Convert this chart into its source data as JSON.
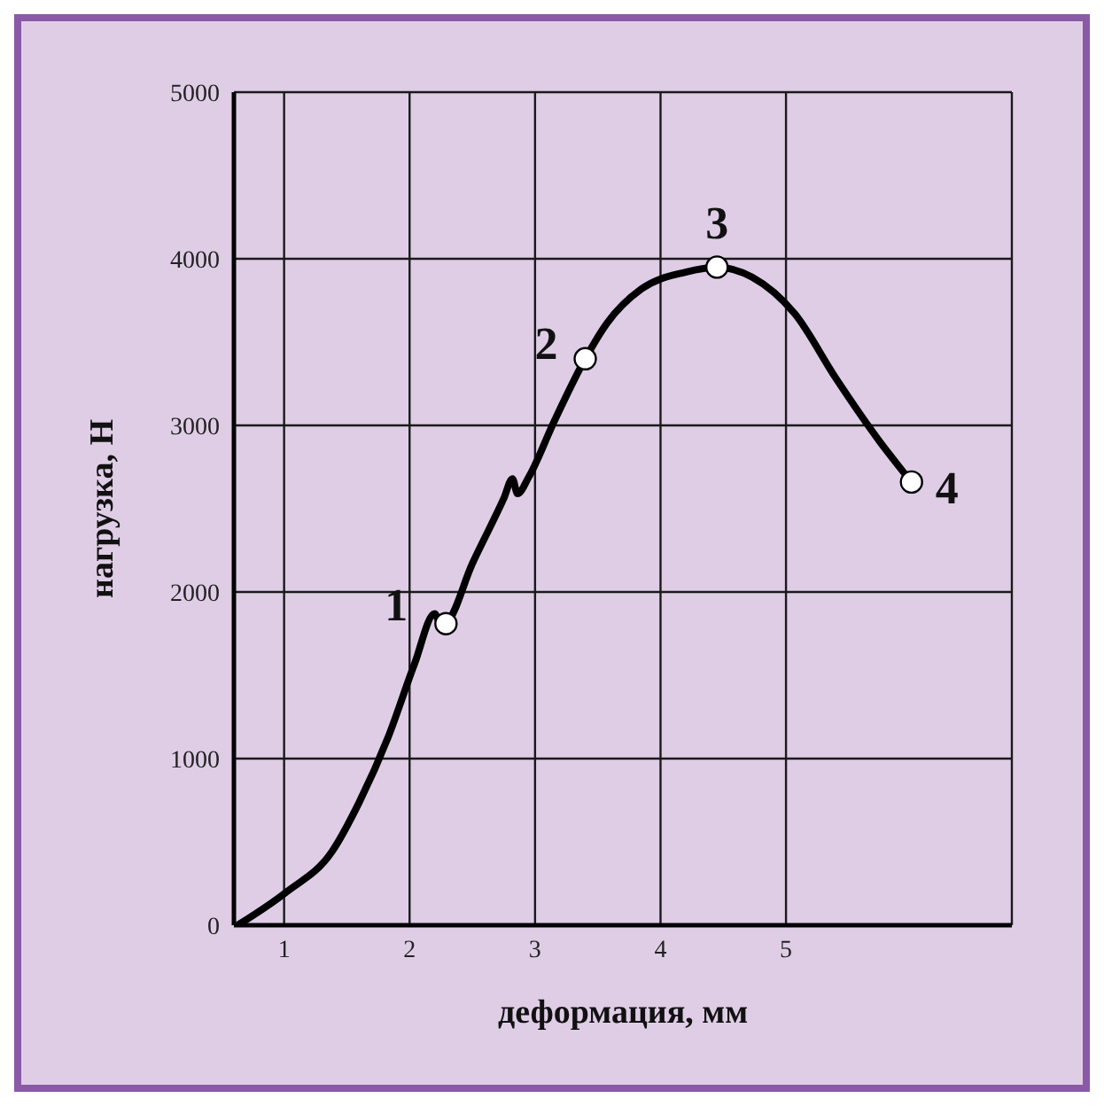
{
  "chart_data": {
    "type": "line",
    "xlabel": "деформация, мм",
    "ylabel": "нагрузка, Н",
    "xlim": [
      0.6,
      6.8
    ],
    "xticks": [
      1,
      2,
      3,
      4,
      5
    ],
    "ylim": [
      0,
      5000
    ],
    "yticks": [
      0,
      1000,
      2000,
      3000,
      4000,
      5000
    ],
    "grid": true,
    "marker": "none",
    "line_style": "solid",
    "series": [
      {
        "color": "#000000",
        "x": [
          0.63,
          1.02,
          1.38,
          1.6,
          1.83,
          2.04,
          2.2,
          2.25,
          2.29,
          2.5,
          2.75,
          2.82,
          2.86,
          2.95,
          3.15,
          3.4,
          3.57,
          3.85,
          4.2,
          4.45,
          4.73,
          5.07,
          5.4,
          5.75,
          6.0
        ],
        "values": [
          0,
          200,
          440,
          740,
          1130,
          1570,
          1870,
          1800,
          1810,
          2170,
          2560,
          2680,
          2590,
          2690,
          3020,
          3400,
          3610,
          3820,
          3920,
          3950,
          3890,
          3670,
          3280,
          2900,
          2660
        ]
      },
      {
        "type": "scatter",
        "color": "#ffffff",
        "marker": "circle",
        "x": [
          2.29,
          3.4,
          4.45,
          6.0
        ],
        "values": [
          1810,
          3400,
          3950,
          2660
        ]
      }
    ],
    "annotations": [
      {
        "text": "1",
        "x": 2.29,
        "y": 1810
      },
      {
        "text": "2",
        "x": 3.4,
        "y": 3400
      },
      {
        "text": "3",
        "x": 4.45,
        "y": 3950
      },
      {
        "text": "4",
        "x": 6.0,
        "y": 2660
      }
    ]
  }
}
